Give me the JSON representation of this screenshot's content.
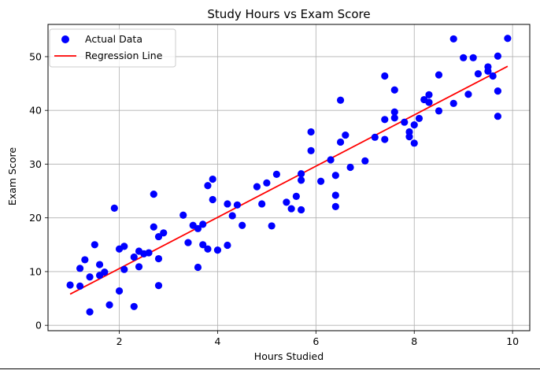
{
  "chart_data": {
    "type": "scatter",
    "title": "Study Hours vs Exam Score",
    "xlabel": "Hours Studied",
    "ylabel": "Exam Score",
    "xlim": [
      0.55,
      10.35
    ],
    "ylim": [
      -1,
      56
    ],
    "xticks": [
      2,
      4,
      6,
      8,
      10
    ],
    "yticks": [
      0,
      10,
      20,
      30,
      40,
      50
    ],
    "grid": true,
    "legend_position": "top-left",
    "series": [
      {
        "name": "Actual Data",
        "kind": "scatter",
        "color": "#0000ff",
        "points": [
          [
            1.0,
            7.5
          ],
          [
            1.2,
            7.3
          ],
          [
            1.2,
            10.6
          ],
          [
            1.3,
            12.2
          ],
          [
            1.4,
            2.5
          ],
          [
            1.4,
            9.0
          ],
          [
            1.5,
            15.0
          ],
          [
            1.6,
            9.3
          ],
          [
            1.6,
            11.3
          ],
          [
            1.7,
            9.9
          ],
          [
            1.8,
            3.8
          ],
          [
            1.9,
            21.8
          ],
          [
            2.0,
            14.2
          ],
          [
            2.0,
            6.4
          ],
          [
            2.1,
            14.7
          ],
          [
            2.1,
            10.4
          ],
          [
            2.3,
            12.7
          ],
          [
            2.3,
            3.5
          ],
          [
            2.4,
            13.8
          ],
          [
            2.4,
            10.9
          ],
          [
            2.5,
            13.3
          ],
          [
            2.6,
            13.5
          ],
          [
            2.7,
            24.4
          ],
          [
            2.7,
            18.3
          ],
          [
            2.8,
            12.4
          ],
          [
            2.8,
            7.4
          ],
          [
            2.8,
            16.5
          ],
          [
            2.9,
            17.2
          ],
          [
            3.3,
            20.5
          ],
          [
            3.4,
            15.4
          ],
          [
            3.5,
            18.6
          ],
          [
            3.6,
            10.8
          ],
          [
            3.6,
            18.0
          ],
          [
            3.7,
            18.8
          ],
          [
            3.7,
            15.0
          ],
          [
            3.8,
            14.2
          ],
          [
            3.8,
            26.0
          ],
          [
            3.9,
            27.2
          ],
          [
            3.9,
            23.4
          ],
          [
            4.0,
            14.0
          ],
          [
            4.2,
            22.6
          ],
          [
            4.2,
            14.9
          ],
          [
            4.3,
            20.4
          ],
          [
            4.4,
            22.4
          ],
          [
            4.5,
            18.6
          ],
          [
            4.8,
            25.8
          ],
          [
            4.9,
            22.6
          ],
          [
            5.0,
            26.5
          ],
          [
            5.1,
            18.5
          ],
          [
            5.2,
            28.1
          ],
          [
            5.4,
            22.9
          ],
          [
            5.5,
            21.7
          ],
          [
            5.6,
            24.0
          ],
          [
            5.7,
            21.5
          ],
          [
            5.7,
            27.0
          ],
          [
            5.7,
            28.2
          ],
          [
            5.9,
            32.5
          ],
          [
            5.9,
            36.0
          ],
          [
            6.1,
            26.8
          ],
          [
            6.3,
            30.8
          ],
          [
            6.4,
            27.9
          ],
          [
            6.4,
            24.2
          ],
          [
            6.4,
            22.1
          ],
          [
            6.5,
            34.1
          ],
          [
            6.5,
            41.9
          ],
          [
            6.6,
            35.4
          ],
          [
            6.7,
            29.4
          ],
          [
            7.0,
            30.6
          ],
          [
            7.2,
            35.0
          ],
          [
            7.4,
            46.4
          ],
          [
            7.4,
            38.3
          ],
          [
            7.4,
            34.6
          ],
          [
            7.6,
            43.8
          ],
          [
            7.6,
            39.7
          ],
          [
            7.6,
            38.6
          ],
          [
            7.8,
            37.8
          ],
          [
            7.9,
            36.0
          ],
          [
            7.9,
            35.1
          ],
          [
            8.0,
            33.9
          ],
          [
            8.0,
            37.3
          ],
          [
            8.1,
            38.5
          ],
          [
            8.2,
            42.0
          ],
          [
            8.3,
            42.9
          ],
          [
            8.3,
            41.5
          ],
          [
            8.5,
            39.9
          ],
          [
            8.5,
            46.6
          ],
          [
            8.8,
            53.3
          ],
          [
            8.8,
            41.3
          ],
          [
            9.0,
            49.8
          ],
          [
            9.1,
            43.0
          ],
          [
            9.2,
            49.8
          ],
          [
            9.3,
            46.8
          ],
          [
            9.5,
            47.3
          ],
          [
            9.5,
            48.1
          ],
          [
            9.6,
            46.4
          ],
          [
            9.7,
            50.1
          ],
          [
            9.7,
            43.6
          ],
          [
            9.7,
            38.9
          ],
          [
            9.9,
            53.4
          ]
        ]
      },
      {
        "name": "Regression Line",
        "kind": "line",
        "color": "#ff0000",
        "points": [
          [
            1.0,
            5.8
          ],
          [
            9.9,
            48.2
          ]
        ]
      }
    ]
  }
}
